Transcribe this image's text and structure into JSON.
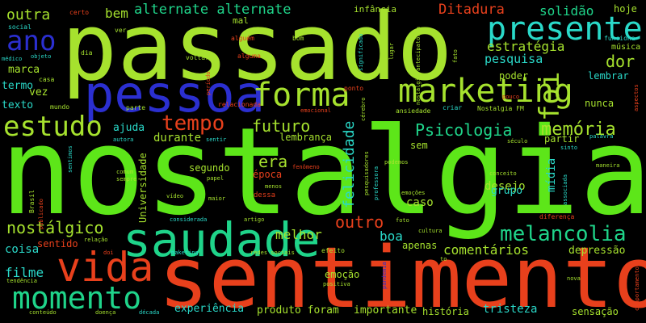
{
  "colors": {
    "background": "#000000",
    "lime": "#a6e22e",
    "green": "#5de619",
    "red": "#e8401c",
    "blue": "#2b2fd0",
    "teal": "#2ad9c9",
    "mint": "#1fd48a",
    "purple": "#5b2d8e",
    "navy": "#2a3f9a"
  },
  "words": {
    "nostalgia": "nostalgia",
    "passado": "passado",
    "sentimento": "sentimento",
    "pessoa": "pessoa",
    "saudade": "saudade",
    "vida": "vida",
    "marketing": "marketing",
    "presente": "presente",
    "forma": "forma",
    "momento": "momento",
    "ano": "ano",
    "estudo": "estudo",
    "foi": "foi",
    "tempo": "tempo",
    "memoria": "memória",
    "psicologia": "Psicologia",
    "melancolia": "melancolia",
    "futuro": "futuro",
    "felicidade": "felicidade",
    "nostalgico": "nostálgico",
    "outro": "outro",
    "alternate": "alternate alternate",
    "ditadura": "Ditadura",
    "outra": "outra",
    "bem": "bem",
    "estrategia": "estratégia",
    "pesquisa": "pesquisa",
    "dor": "dor",
    "solidao": "solidão",
    "era": "era",
    "melhor": "melhor",
    "boa": "boa",
    "comentarios": "comentários",
    "filme": "filme",
    "lembranca": "lembrança",
    "durante": "durante",
    "coisa": "coisa",
    "depressao": "depressão",
    "tristeza": "tristeza",
    "midia": "mídia",
    "experiencia": "experiência",
    "produto_foram": "produto foram",
    "importante": "importante",
    "historia": "história",
    "sensacao": "sensação",
    "universidade": "Universidade",
    "apenas": "apenas",
    "caso": "caso",
    "desejo": "desejo",
    "grupo": "grupo",
    "partir": "partir",
    "sem": "sem",
    "epoca": "época",
    "segundo": "segundo",
    "ajuda": "ajuda",
    "hoje": "hoje",
    "musica": "música",
    "funciona": "funciona",
    "poder": "poder",
    "lembrar": "lembrar",
    "nunca": "nunca",
    "marca": "marca",
    "vez": "vez",
    "termo": "termo",
    "texto": "texto",
    "sentido": "sentido",
    "emocao": "emoção",
    "mal": "mal",
    "infancia": "infância",
    "certo": "certo",
    "social": "social",
    "medico": "médico",
    "objeto": "objeto",
    "casa": "casa",
    "ver": "ver",
    "dia": "dia",
    "alguem": "alguém",
    "so": "só",
    "voltar": "voltar",
    "alguma": "alguma",
    "periodo": "período",
    "bom": "bom",
    "significado": "significado",
    "lugar": "lugar",
    "nostalgia_antecipatoria": "nostalgia antecipatória",
    "fato": "fato",
    "pouco": "pouco",
    "aspectos": "aspectos",
    "ponto": "ponto",
    "ansiedade": "ansiedade",
    "criar": "criar",
    "nostalgia_fm": "Nostalgia FM",
    "relacionada": "relacionada",
    "emocional": "emocional",
    "cerebro": "cérebro",
    "mundo": "mundo",
    "parte": "parte",
    "autora": "autora",
    "sentir": "sentir",
    "sentimos": "sentimos",
    "comum": "comum",
    "sempre": "sempre",
    "papel": "papel",
    "video": "vídeo",
    "maior": "maior",
    "brasil": "Brasil",
    "publicado": "publicado",
    "considerada": "considerada",
    "artigo": "artigo",
    "relacao": "relação",
    "doi": "doi",
    "maketing": "maketing",
    "redes_sociais": "redes sociais",
    "efeito": "efeito",
    "tendencia": "tendência",
    "positiva": "positiva",
    "pandemia": "pandemia",
    "conteudo": "conteúdo",
    "doenca": "doença",
    "decada": "década",
    "fenomeno": "fenômeno",
    "menos": "menos",
    "dessa": "dessa",
    "professora": "professora",
    "pesquisadores": "pesquisadores",
    "podemos": "podemos",
    "emocoes": "emoções",
    "conceito": "conceito",
    "associada": "associada",
    "maneira": "maneira",
    "seculo": "século",
    "sinto": "sinto",
    "palavra": "palavra",
    "foto": "foto",
    "cultura": "cultura",
    "to": "to",
    "diferenca": "diferença",
    "nova": "nova",
    "comportamento": "comportamento"
  }
}
